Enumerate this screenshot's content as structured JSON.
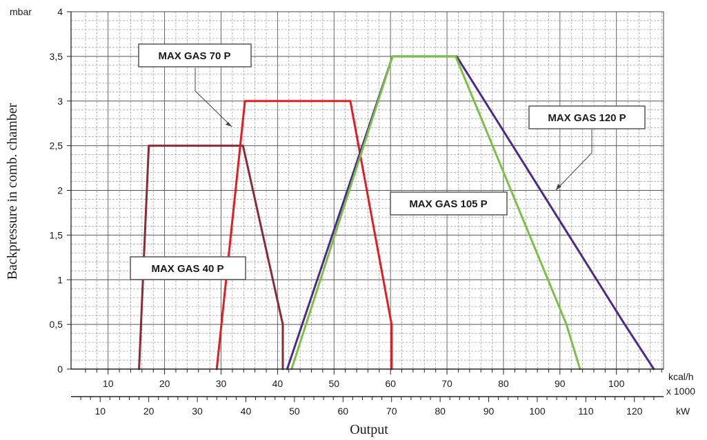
{
  "chart_data": {
    "type": "line",
    "xlabel": "Output",
    "ylabel": "Backpressure in comb. chamber",
    "y_unit": "mbar",
    "x_unit_kcal": "kcal/h",
    "x_unit_kcal_mult": "x 1000",
    "x_unit_kw": "kW",
    "xlim_kw": [
      4,
      126
    ],
    "ylim": [
      0,
      4
    ],
    "grid": true,
    "y_ticks": [
      {
        "value": 0,
        "label": "0"
      },
      {
        "value": 0.5,
        "label": "0,5"
      },
      {
        "value": 1,
        "label": "1"
      },
      {
        "value": 1.5,
        "label": "1,5"
      },
      {
        "value": 2,
        "label": "2"
      },
      {
        "value": 2.5,
        "label": "2,5"
      },
      {
        "value": 3,
        "label": "3"
      },
      {
        "value": 3.5,
        "label": "3,5"
      },
      {
        "value": 4,
        "label": "4"
      }
    ],
    "x_ticks_kcal": [
      {
        "value": 10,
        "label": "10"
      },
      {
        "value": 20,
        "label": "20"
      },
      {
        "value": 30,
        "label": "30"
      },
      {
        "value": 40,
        "label": "40"
      },
      {
        "value": 50,
        "label": "50"
      },
      {
        "value": 60,
        "label": "60"
      },
      {
        "value": 70,
        "label": "70"
      },
      {
        "value": 80,
        "label": "80"
      },
      {
        "value": 90,
        "label": "90"
      },
      {
        "value": 100,
        "label": "100"
      }
    ],
    "x_ticks_kw": [
      {
        "value": 10,
        "label": "10"
      },
      {
        "value": 20,
        "label": "20"
      },
      {
        "value": 30,
        "label": "30"
      },
      {
        "value": 40,
        "label": "40"
      },
      {
        "value": 50,
        "label": "50"
      },
      {
        "value": 60,
        "label": "60"
      },
      {
        "value": 70,
        "label": "70"
      },
      {
        "value": 80,
        "label": "80"
      },
      {
        "value": 90,
        "label": "90"
      },
      {
        "value": 100,
        "label": "100"
      },
      {
        "value": 110,
        "label": "110"
      },
      {
        "value": 120,
        "label": "120"
      }
    ],
    "series": [
      {
        "name": "MAX GAS 40 P",
        "color": "#8b2a35",
        "points": [
          [
            18,
            0
          ],
          [
            20,
            2.5
          ],
          [
            39.4,
            2.5
          ],
          [
            47.6,
            0.5
          ],
          [
            47.6,
            0
          ]
        ]
      },
      {
        "name": "MAX GAS 70 P",
        "color": "#e31b23",
        "points": [
          [
            34,
            0
          ],
          [
            39.8,
            3
          ],
          [
            61.5,
            3
          ],
          [
            70,
            0.5
          ],
          [
            70,
            0
          ]
        ]
      },
      {
        "name": "MAX GAS 120 P",
        "color": "#4b2a8c",
        "points": [
          [
            48.5,
            0
          ],
          [
            70.2,
            3.5
          ],
          [
            83.4,
            3.5
          ],
          [
            118,
            0.5
          ],
          [
            124,
            0
          ]
        ]
      },
      {
        "name": "MAX GAS 105 P",
        "color": "#7ac143",
        "points": [
          [
            49.4,
            0
          ],
          [
            70.2,
            3.5
          ],
          [
            83.2,
            3.5
          ],
          [
            106,
            0.5
          ],
          [
            108.8,
            0
          ]
        ]
      }
    ],
    "annotations": [
      {
        "text": "MAX GAS 70 P"
      },
      {
        "text": "MAX GAS 40 P"
      },
      {
        "text": "MAX GAS 105 P"
      },
      {
        "text": "MAX GAS 120 P"
      }
    ]
  }
}
